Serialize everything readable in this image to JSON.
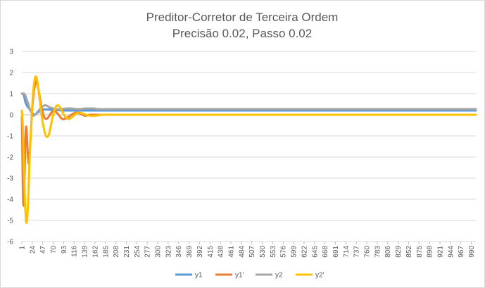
{
  "chart_data": {
    "type": "line",
    "title": "Preditor-Corretor de Terceira Ordem",
    "subtitle": "Precisão 0.02, Passo 0.02",
    "xlabel": "",
    "ylabel": "",
    "ylim": [
      -6,
      3
    ],
    "yticks": [
      "3",
      "2",
      "1",
      "0",
      "-1",
      "-2",
      "-3",
      "-4",
      "-5",
      "-6"
    ],
    "x_range": [
      1,
      1000
    ],
    "x_tick_labels": [
      "1",
      "24",
      "47",
      "70",
      "93",
      "116",
      "139",
      "162",
      "185",
      "208",
      "231",
      "254",
      "277",
      "300",
      "323",
      "346",
      "369",
      "392",
      "415",
      "438",
      "461",
      "484",
      "507",
      "530",
      "553",
      "576",
      "599",
      "622",
      "645",
      "668",
      "691",
      "714",
      "737",
      "760",
      "783",
      "806",
      "829",
      "852",
      "875",
      "898",
      "921",
      "944",
      "967",
      "990"
    ],
    "gridlines": "horizontal",
    "legend_position": "bottom",
    "series": [
      {
        "name": "y1",
        "color": "#5b9bd5",
        "points": [
          [
            1,
            1.0
          ],
          [
            5,
            0.95
          ],
          [
            9,
            0.6
          ],
          [
            13,
            0.4
          ],
          [
            17,
            0.3
          ],
          [
            21,
            0.18
          ],
          [
            25,
            0.05
          ],
          [
            29,
            0.0
          ],
          [
            33,
            0.05
          ],
          [
            37,
            0.12
          ],
          [
            43,
            0.2
          ],
          [
            50,
            0.25
          ],
          [
            60,
            0.25
          ],
          [
            70,
            0.22
          ],
          [
            80,
            0.22
          ],
          [
            90,
            0.2
          ],
          [
            100,
            0.2
          ],
          [
            120,
            0.2
          ],
          [
            150,
            0.2
          ],
          [
            200,
            0.2
          ],
          [
            300,
            0.2
          ],
          [
            500,
            0.2
          ],
          [
            700,
            0.2
          ],
          [
            1000,
            0.2
          ]
        ]
      },
      {
        "name": "y1'",
        "color": "#ed7d31",
        "points": [
          [
            1,
            -0.1
          ],
          [
            2,
            -1.5
          ],
          [
            3,
            -3.2
          ],
          [
            4,
            -4.1
          ],
          [
            5,
            -4.3
          ],
          [
            6,
            -3.9
          ],
          [
            7,
            -3.0
          ],
          [
            8,
            -1.9
          ],
          [
            9,
            -1.0
          ],
          [
            10,
            -0.6
          ],
          [
            11,
            -0.6
          ],
          [
            12,
            -0.9
          ],
          [
            13,
            -1.3
          ],
          [
            14,
            -1.8
          ],
          [
            15,
            -2.1
          ],
          [
            16,
            -2.3
          ],
          [
            17,
            -2.3
          ],
          [
            18,
            -2.0
          ],
          [
            19,
            -1.6
          ],
          [
            20,
            -1.2
          ],
          [
            22,
            -0.4
          ],
          [
            24,
            0.3
          ],
          [
            27,
            1.0
          ],
          [
            30,
            1.4
          ],
          [
            33,
            1.6
          ],
          [
            36,
            1.4
          ],
          [
            40,
            0.9
          ],
          [
            45,
            0.3
          ],
          [
            50,
            -0.1
          ],
          [
            55,
            -0.2
          ],
          [
            60,
            -0.1
          ],
          [
            66,
            0.1
          ],
          [
            72,
            0.2
          ],
          [
            80,
            0.05
          ],
          [
            90,
            -0.2
          ],
          [
            100,
            -0.15
          ],
          [
            110,
            0.0
          ],
          [
            120,
            0.1
          ],
          [
            130,
            0.05
          ],
          [
            140,
            -0.05
          ],
          [
            150,
            0.0
          ],
          [
            170,
            0.0
          ],
          [
            200,
            0.0
          ],
          [
            300,
            0.0
          ],
          [
            600,
            0.0
          ],
          [
            1000,
            0.0
          ]
        ]
      },
      {
        "name": "y2",
        "color": "#a5a5a5",
        "points": [
          [
            1,
            1.0
          ],
          [
            4,
            1.0
          ],
          [
            6,
            1.0
          ],
          [
            9,
            0.9
          ],
          [
            12,
            0.7
          ],
          [
            15,
            0.55
          ],
          [
            18,
            0.3
          ],
          [
            21,
            0.15
          ],
          [
            24,
            0.0
          ],
          [
            27,
            -0.05
          ],
          [
            30,
            0.0
          ],
          [
            34,
            0.1
          ],
          [
            38,
            0.2
          ],
          [
            42,
            0.3
          ],
          [
            47,
            0.4
          ],
          [
            52,
            0.45
          ],
          [
            57,
            0.42
          ],
          [
            62,
            0.35
          ],
          [
            70,
            0.3
          ],
          [
            80,
            0.25
          ],
          [
            90,
            0.28
          ],
          [
            100,
            0.3
          ],
          [
            110,
            0.3
          ],
          [
            120,
            0.28
          ],
          [
            130,
            0.27
          ],
          [
            140,
            0.3
          ],
          [
            150,
            0.3
          ],
          [
            160,
            0.3
          ],
          [
            170,
            0.27
          ],
          [
            200,
            0.27
          ],
          [
            300,
            0.27
          ],
          [
            500,
            0.27
          ],
          [
            1000,
            0.27
          ]
        ]
      },
      {
        "name": "y2'",
        "color": "#ffc000",
        "points": [
          [
            1,
            0.2
          ],
          [
            3,
            -0.5
          ],
          [
            5,
            -2.0
          ],
          [
            7,
            -3.5
          ],
          [
            9,
            -4.6
          ],
          [
            11,
            -5.1
          ],
          [
            13,
            -4.9
          ],
          [
            15,
            -4.0
          ],
          [
            17,
            -2.8
          ],
          [
            19,
            -1.6
          ],
          [
            22,
            -0.3
          ],
          [
            25,
            0.8
          ],
          [
            28,
            1.5
          ],
          [
            31,
            1.8
          ],
          [
            34,
            1.7
          ],
          [
            37,
            1.3
          ],
          [
            41,
            0.6
          ],
          [
            45,
            -0.1
          ],
          [
            49,
            -0.6
          ],
          [
            53,
            -0.95
          ],
          [
            57,
            -1.05
          ],
          [
            61,
            -0.9
          ],
          [
            65,
            -0.5
          ],
          [
            70,
            0.0
          ],
          [
            75,
            0.35
          ],
          [
            80,
            0.45
          ],
          [
            85,
            0.35
          ],
          [
            90,
            0.15
          ],
          [
            95,
            -0.05
          ],
          [
            100,
            -0.15
          ],
          [
            105,
            -0.2
          ],
          [
            112,
            -0.1
          ],
          [
            120,
            0.05
          ],
          [
            128,
            0.1
          ],
          [
            136,
            0.05
          ],
          [
            145,
            -0.02
          ],
          [
            160,
            -0.05
          ],
          [
            180,
            0.0
          ],
          [
            210,
            0.0
          ],
          [
            260,
            0.0
          ],
          [
            400,
            0.0
          ],
          [
            700,
            0.0
          ],
          [
            1000,
            0.0
          ]
        ]
      }
    ]
  }
}
